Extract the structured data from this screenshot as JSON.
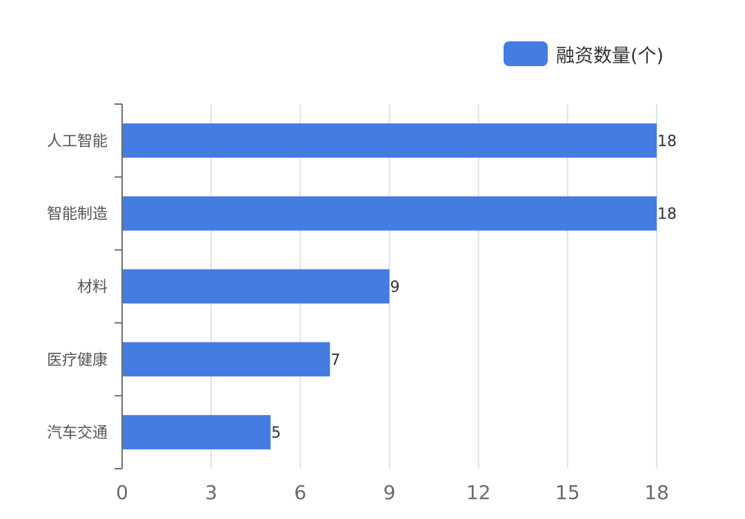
{
  "legend": {
    "label": "融资数量(个)"
  },
  "colors": {
    "bar": "#447CE2",
    "grid": "#DDE3EC",
    "axis": "#6E6E6E"
  },
  "chart_data": {
    "type": "bar",
    "orientation": "horizontal",
    "categories": [
      "人工智能",
      "智能制造",
      "材料",
      "医疗健康",
      "汽车交通"
    ],
    "series": [
      {
        "name": "融资数量(个)",
        "values": [
          18,
          18,
          9,
          7,
          5
        ]
      }
    ],
    "xlim": [
      0,
      18
    ],
    "xticks": [
      0,
      3,
      6,
      9,
      12,
      15,
      18
    ],
    "grid": "vertical",
    "legend_position": "top-right",
    "data_labels": true
  }
}
